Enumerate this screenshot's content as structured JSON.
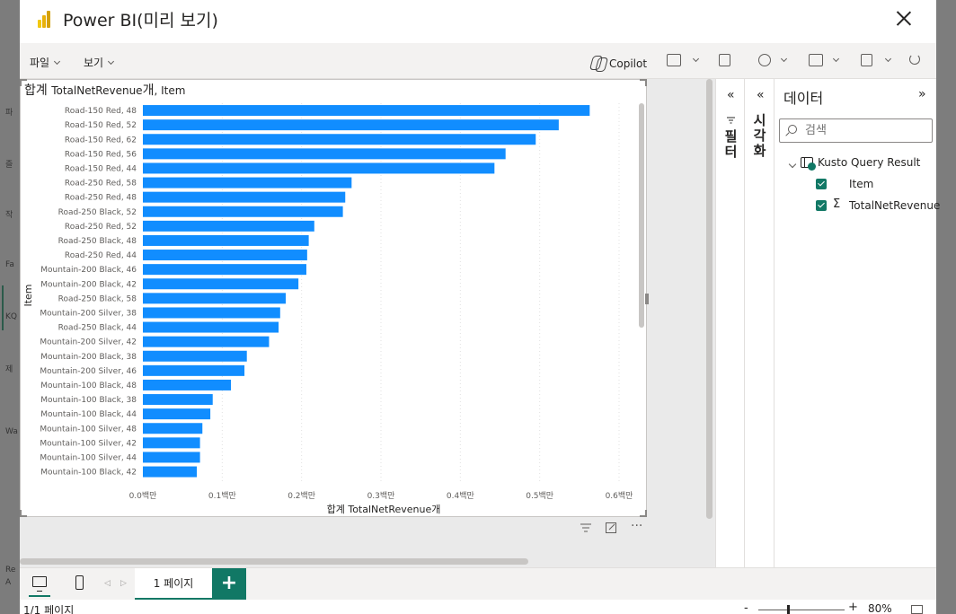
{
  "background": {
    "items": [
      "Fa",
      "KQ",
      "Wa"
    ],
    "items_top": [
      "파",
      "즐",
      "작"
    ],
    "items_mid": [
      "제"
    ],
    "items_bottom": [
      "Re",
      "A"
    ]
  },
  "dialog": {
    "title": "Power BI(미리 보기)",
    "close_label": "×"
  },
  "ribbon": {
    "file_menu": "파일",
    "view_menu": "보기",
    "copilot_label": "Copilot"
  },
  "visual": {
    "title_prefix": "합계",
    "title_measure": "TotalNetRevenue",
    "title_suffix": "개",
    "title_field": ", Item",
    "more_label": "···"
  },
  "chart_data": {
    "type": "bar",
    "orientation": "horizontal",
    "title": "합계 TotalNetRevenue개, Item",
    "xlabel": "합계 TotalNetRevenue개",
    "ylabel": "Item",
    "xlim": [
      0,
      0.6
    ],
    "x_unit": "백만",
    "x_ticks": [
      "0.0백만",
      "0.1백만",
      "0.2백만",
      "0.3백만",
      "0.4백만",
      "0.5백만",
      "0.6백만"
    ],
    "grid": true,
    "bar_color": "#118DFF",
    "categories": [
      "Road-150 Red, 48",
      "Road-150 Red, 52",
      "Road-150 Red, 62",
      "Road-150 Red, 56",
      "Road-150 Red, 44",
      "Road-250 Red, 58",
      "Road-250 Red, 48",
      "Road-250 Black, 52",
      "Road-250 Red, 52",
      "Road-250 Black, 48",
      "Road-250 Red, 44",
      "Mountain-200 Black, 46",
      "Mountain-200 Black, 42",
      "Road-250 Black, 58",
      "Mountain-200 Silver, 38",
      "Road-250 Black, 44",
      "Mountain-200 Silver, 42",
      "Mountain-200 Black, 38",
      "Mountain-200 Silver, 46",
      "Mountain-100 Black, 48",
      "Mountain-100 Black, 38",
      "Mountain-100 Black, 44",
      "Mountain-100 Silver, 48",
      "Mountain-100 Silver, 42",
      "Mountain-100 Silver, 44",
      "Mountain-100 Black, 42"
    ],
    "values": [
      0.563,
      0.524,
      0.495,
      0.457,
      0.443,
      0.263,
      0.255,
      0.252,
      0.216,
      0.209,
      0.207,
      0.206,
      0.196,
      0.18,
      0.173,
      0.171,
      0.159,
      0.131,
      0.128,
      0.111,
      0.088,
      0.085,
      0.075,
      0.072,
      0.072,
      0.068
    ]
  },
  "panes": {
    "filter_label": "필터",
    "viz_label": "시각화",
    "collapse_glyph": "«",
    "data_title": "데이터",
    "expand_glyph": "»",
    "search_placeholder": "검색",
    "dataset_name": "Kusto Query Result",
    "fields": [
      {
        "name": "Item",
        "checked": true,
        "sigma": false
      },
      {
        "name": "TotalNetRevenue",
        "checked": true,
        "sigma": true
      }
    ]
  },
  "tabs": {
    "page_label": "1 페이지",
    "add_label": "+"
  },
  "status": {
    "page_count": "1/1 페이지",
    "zoom_minus": "-",
    "zoom_plus": "+",
    "zoom": "80%",
    "zoom_level_percent": 80
  }
}
